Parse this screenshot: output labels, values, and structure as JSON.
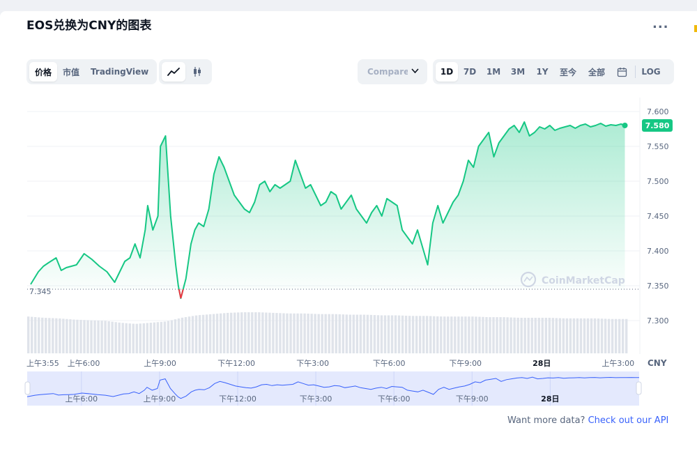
{
  "title": "EOS兑换为CNY的图表",
  "more_label": "...",
  "tabs_left": [
    {
      "label": "价格",
      "active": true
    },
    {
      "label": "市值",
      "active": false
    },
    {
      "label": "TradingView",
      "active": false
    }
  ],
  "chart_type_icons": [
    "line-chart-icon",
    "candlestick-icon"
  ],
  "compare_label": "Compare with",
  "ranges": [
    {
      "label": "1D",
      "active": true
    },
    {
      "label": "7D",
      "active": false
    },
    {
      "label": "1M",
      "active": false
    },
    {
      "label": "3M",
      "active": false
    },
    {
      "label": "1Y",
      "active": false
    },
    {
      "label": "至今",
      "active": false
    },
    {
      "label": "全部",
      "active": false
    }
  ],
  "log_label": "LOG",
  "footer": {
    "text": "Want more data?",
    "link": "Check out our API"
  },
  "watermark": "CoinMarketCap",
  "colors": {
    "up": "#16c784",
    "down": "#ea3943",
    "nav": "#3861fb"
  },
  "chart_data": {
    "type": "line",
    "title": "",
    "currency_label": "CNY",
    "current_price_label": "7.580",
    "current_price": 7.58,
    "open_price_label": "7.345",
    "open_price": 7.345,
    "ylim": [
      7.25,
      7.615
    ],
    "y_ticks": [
      "7.600",
      "7.550",
      "7.500",
      "7.450",
      "7.400",
      "7.350",
      "7.300"
    ],
    "y_tick_values": [
      7.6,
      7.55,
      7.5,
      7.45,
      7.4,
      7.35,
      7.3
    ],
    "x_ticks": [
      "上午3:55",
      "上午6:00",
      "上午9:00",
      "下午12:00",
      "下午3:00",
      "下午6:00",
      "下午9:00",
      "28日",
      "上午3:00"
    ],
    "x_tick_hours": [
      0,
      2.083,
      5.083,
      8.083,
      11.083,
      14.083,
      17.083,
      20.083,
      23.083
    ],
    "navigator_ticks": [
      "上午6:00",
      "上午9:00",
      "下午12:00",
      "下午3:00",
      "下午6:00",
      "下午9:00",
      "28日"
    ],
    "navigator_tick_hours": [
      2.083,
      5.083,
      8.083,
      11.083,
      14.083,
      17.083,
      20.083
    ],
    "x_range_hours": [
      0,
      23.5
    ],
    "series": [
      {
        "x": [
          0,
          0.3,
          0.5,
          0.7,
          1.0,
          1.2,
          1.4,
          1.6,
          1.8,
          2.1,
          2.4,
          2.7,
          3.0,
          3.3,
          3.5,
          3.7,
          3.9,
          4.1,
          4.3,
          4.5,
          4.6,
          4.8,
          5.0,
          5.1,
          5.3,
          5.5,
          5.7,
          5.8,
          5.9,
          6.1,
          6.3,
          6.45,
          6.6,
          6.8,
          7.0,
          7.2,
          7.4,
          7.6,
          7.8,
          8.0,
          8.2,
          8.4,
          8.6,
          8.8,
          9.0,
          9.2,
          9.4,
          9.6,
          9.8,
          10.0,
          10.2,
          10.4,
          10.6,
          10.8,
          11.0,
          11.2,
          11.4,
          11.6,
          11.8,
          12.0,
          12.2,
          12.4,
          12.6,
          12.8,
          13.0,
          13.2,
          13.4,
          13.6,
          13.8,
          14.0,
          14.2,
          14.4,
          14.6,
          14.8,
          15.0,
          15.2,
          15.4,
          15.6,
          15.8,
          16.0,
          16.2,
          16.4,
          16.6,
          16.8,
          17.0,
          17.2,
          17.4,
          17.6,
          17.8,
          18.0,
          18.2,
          18.4,
          18.6,
          18.8,
          19.0,
          19.2,
          19.4,
          19.6,
          19.8,
          20.0,
          20.2,
          20.4,
          20.6,
          20.8,
          21.0,
          21.2,
          21.4,
          21.6,
          21.8,
          22.0,
          22.2,
          22.4,
          22.6,
          22.8,
          23.0,
          23.2,
          23.35
        ],
        "values": [
          7.352,
          7.37,
          7.378,
          7.383,
          7.39,
          7.372,
          7.376,
          7.378,
          7.38,
          7.396,
          7.388,
          7.378,
          7.37,
          7.355,
          7.37,
          7.385,
          7.39,
          7.41,
          7.39,
          7.43,
          7.465,
          7.43,
          7.45,
          7.55,
          7.565,
          7.45,
          7.38,
          7.35,
          7.332,
          7.36,
          7.41,
          7.43,
          7.44,
          7.435,
          7.46,
          7.51,
          7.535,
          7.52,
          7.5,
          7.48,
          7.47,
          7.46,
          7.455,
          7.47,
          7.495,
          7.5,
          7.485,
          7.495,
          7.49,
          7.495,
          7.5,
          7.53,
          7.51,
          7.49,
          7.495,
          7.48,
          7.465,
          7.47,
          7.485,
          7.48,
          7.46,
          7.47,
          7.48,
          7.46,
          7.45,
          7.44,
          7.455,
          7.465,
          7.45,
          7.475,
          7.47,
          7.465,
          7.43,
          7.42,
          7.41,
          7.43,
          7.405,
          7.38,
          7.44,
          7.465,
          7.44,
          7.455,
          7.47,
          7.48,
          7.5,
          7.53,
          7.52,
          7.55,
          7.56,
          7.57,
          7.535,
          7.555,
          7.565,
          7.575,
          7.58,
          7.57,
          7.585,
          7.565,
          7.57,
          7.578,
          7.575,
          7.58,
          7.573,
          7.576,
          7.578,
          7.58,
          7.576,
          7.58,
          7.582,
          7.578,
          7.58,
          7.583,
          7.579,
          7.581,
          7.58,
          7.582,
          7.58
        ]
      }
    ],
    "volume_relative": [
      0.6,
      0.58,
      0.57,
      0.55,
      0.54,
      0.53,
      0.5,
      0.48,
      0.5,
      0.52,
      0.58,
      0.62,
      0.64,
      0.66,
      0.67,
      0.67,
      0.66,
      0.65,
      0.65,
      0.64,
      0.64,
      0.63,
      0.63,
      0.62,
      0.62,
      0.61,
      0.61,
      0.6,
      0.6,
      0.6,
      0.59,
      0.59,
      0.58,
      0.58,
      0.58,
      0.57,
      0.57,
      0.57,
      0.56,
      0.56
    ]
  }
}
